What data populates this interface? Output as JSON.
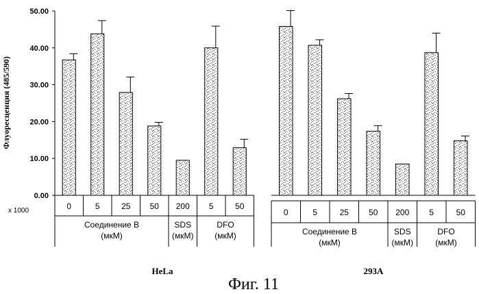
{
  "chart_data": {
    "type": "bar",
    "ylabel": "Флуоресценция (485/590)",
    "y_multiplier_label": "x 1000",
    "ylim": [
      0,
      50
    ],
    "y_ticks": [
      "0.00",
      "10.00",
      "20.00",
      "30.00",
      "40.00",
      "50.00"
    ],
    "caption": "Фиг. 11",
    "panels": [
      {
        "name": "HeLa",
        "categories": [
          "0",
          "5",
          "25",
          "50",
          "200",
          "5",
          "50"
        ],
        "values": [
          36.7,
          43.8,
          27.9,
          18.8,
          9.5,
          40.0,
          12.9
        ],
        "errors": [
          1.7,
          3.6,
          4.2,
          1.0,
          0.0,
          5.9,
          2.3
        ],
        "groups": [
          {
            "line1": "Соединение В",
            "line2": "(мкМ)",
            "start": 0,
            "end": 4
          },
          {
            "line1": "SDS",
            "line2": "(мкМ)",
            "start": 4,
            "end": 5
          },
          {
            "line1": "DFO",
            "line2": "(мкМ)",
            "start": 5,
            "end": 7
          }
        ]
      },
      {
        "name": "293A",
        "categories": [
          "0",
          "5",
          "25",
          "50",
          "200",
          "5",
          "50"
        ],
        "values": [
          45.8,
          40.7,
          26.2,
          17.4,
          8.5,
          38.7,
          14.8
        ],
        "errors": [
          4.3,
          1.5,
          1.4,
          1.5,
          0.0,
          5.3,
          1.3
        ],
        "groups": [
          {
            "line1": "Соединение В",
            "line2": "(мкМ)",
            "start": 0,
            "end": 4
          },
          {
            "line1": "SDS",
            "line2": "(мкМ)",
            "start": 4,
            "end": 5
          },
          {
            "line1": "DFO",
            "line2": "(мкМ)",
            "start": 5,
            "end": 7
          }
        ]
      }
    ]
  }
}
